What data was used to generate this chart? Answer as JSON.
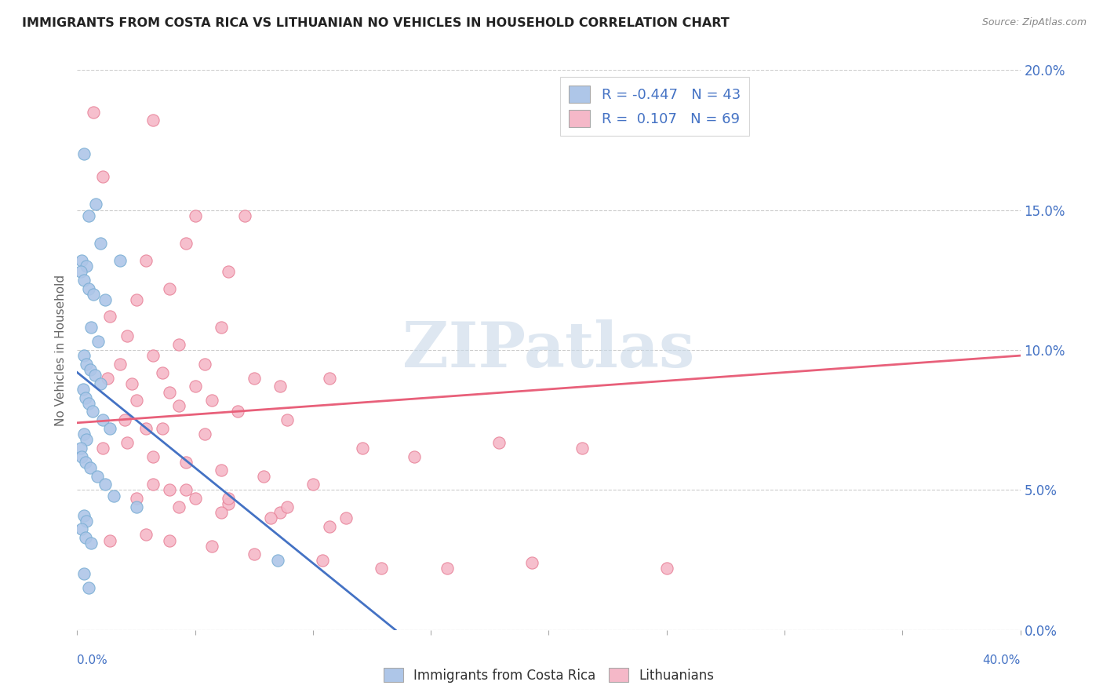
{
  "title": "IMMIGRANTS FROM COSTA RICA VS LITHUANIAN NO VEHICLES IN HOUSEHOLD CORRELATION CHART",
  "source": "Source: ZipAtlas.com",
  "ylabel": "No Vehicles in Household",
  "ytick_values": [
    0.0,
    5.0,
    10.0,
    15.0,
    20.0
  ],
  "ytick_labels": [
    "0.0%",
    "5.0%",
    "10.0%",
    "15.0%",
    "20.0%"
  ],
  "xtick_values": [
    0.0,
    5.0,
    10.0,
    15.0,
    20.0,
    25.0,
    30.0,
    35.0,
    40.0
  ],
  "xlim": [
    0,
    40
  ],
  "ylim": [
    0,
    20
  ],
  "blue_R": -0.447,
  "blue_N": 43,
  "pink_R": 0.107,
  "pink_N": 69,
  "blue_color": "#aec6e8",
  "pink_color": "#f5b8c8",
  "blue_edge_color": "#7bafd4",
  "pink_edge_color": "#e8849a",
  "blue_line_color": "#4472c4",
  "pink_line_color": "#e8607a",
  "right_axis_color": "#4472c4",
  "watermark_color": "#c8d8e8",
  "legend_label_blue": "Immigrants from Costa Rica",
  "legend_label_pink": "Lithuanians",
  "blue_line_x0": 0.0,
  "blue_line_y0": 9.2,
  "blue_line_x1": 13.5,
  "blue_line_y1": 0.0,
  "pink_line_x0": 0.0,
  "pink_line_y0": 7.4,
  "pink_line_x1": 40.0,
  "pink_line_y1": 9.8,
  "blue_scatter_x": [
    0.3,
    0.8,
    0.5,
    1.0,
    0.2,
    0.4,
    0.15,
    0.3,
    0.5,
    0.7,
    1.2,
    1.8,
    0.6,
    0.9,
    0.3,
    0.4,
    0.55,
    0.75,
    1.0,
    0.25,
    0.35,
    0.5,
    0.65,
    1.1,
    1.4,
    0.3,
    0.4,
    0.15,
    0.2,
    0.35,
    0.55,
    0.85,
    1.2,
    1.55,
    2.5,
    0.3,
    0.4,
    0.2,
    0.35,
    0.6,
    8.5,
    0.3,
    0.5
  ],
  "blue_scatter_y": [
    17.0,
    15.2,
    14.8,
    13.8,
    13.2,
    13.0,
    12.8,
    12.5,
    12.2,
    12.0,
    11.8,
    13.2,
    10.8,
    10.3,
    9.8,
    9.5,
    9.3,
    9.1,
    8.8,
    8.6,
    8.3,
    8.1,
    7.8,
    7.5,
    7.2,
    7.0,
    6.8,
    6.5,
    6.2,
    6.0,
    5.8,
    5.5,
    5.2,
    4.8,
    4.4,
    4.1,
    3.9,
    3.6,
    3.3,
    3.1,
    2.5,
    2.0,
    1.5
  ],
  "pink_scatter_x": [
    0.7,
    1.1,
    3.2,
    5.0,
    2.9,
    4.6,
    6.4,
    3.9,
    2.5,
    1.4,
    6.1,
    2.1,
    4.3,
    7.1,
    3.2,
    5.4,
    3.6,
    1.8,
    1.3,
    2.3,
    3.9,
    5.7,
    8.6,
    10.7,
    5.0,
    2.5,
    4.3,
    6.8,
    8.9,
    2.9,
    2.0,
    3.6,
    5.4,
    7.5,
    2.1,
    1.1,
    3.2,
    4.6,
    6.1,
    7.9,
    10.0,
    12.1,
    14.3,
    17.9,
    21.4,
    3.9,
    5.0,
    6.4,
    8.6,
    11.4,
    2.5,
    4.3,
    6.1,
    8.2,
    10.7,
    2.9,
    1.4,
    3.9,
    5.7,
    7.5,
    10.4,
    12.9,
    15.7,
    19.3,
    25.0,
    3.2,
    4.6,
    6.4,
    8.9
  ],
  "pink_scatter_y": [
    18.5,
    16.2,
    18.2,
    14.8,
    13.2,
    13.8,
    12.8,
    12.2,
    11.8,
    11.2,
    10.8,
    10.5,
    10.2,
    14.8,
    9.8,
    9.5,
    9.2,
    9.5,
    9.0,
    8.8,
    8.5,
    8.2,
    8.7,
    9.0,
    8.7,
    8.2,
    8.0,
    7.8,
    7.5,
    7.2,
    7.5,
    7.2,
    7.0,
    9.0,
    6.7,
    6.5,
    6.2,
    6.0,
    5.7,
    5.5,
    5.2,
    6.5,
    6.2,
    6.7,
    6.5,
    5.0,
    4.7,
    4.5,
    4.2,
    4.0,
    4.7,
    4.4,
    4.2,
    4.0,
    3.7,
    3.4,
    3.2,
    3.2,
    3.0,
    2.7,
    2.5,
    2.2,
    2.2,
    2.4,
    2.2,
    5.2,
    5.0,
    4.7,
    4.4
  ]
}
